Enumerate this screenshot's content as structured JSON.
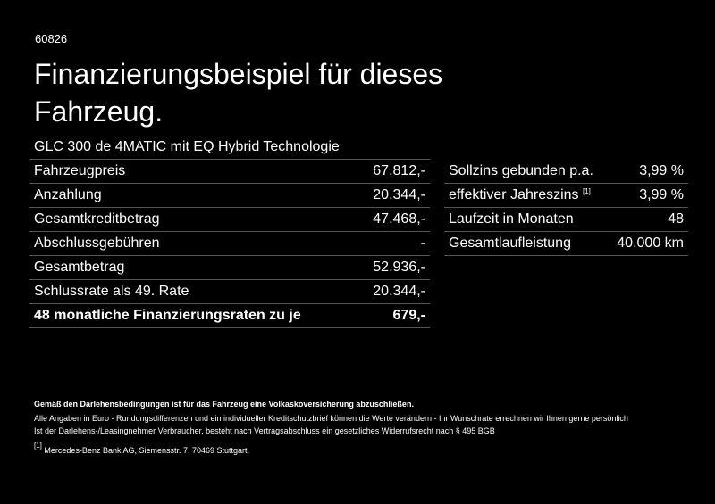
{
  "code": "60826",
  "title": "Finanzierungsbeispiel für dieses Fahrzeug.",
  "model": "GLC 300 de 4MATIC mit EQ Hybrid Technologie",
  "left_rows": [
    {
      "label": "Fahrzeugpreis",
      "value": "67.812,-"
    },
    {
      "label": "Anzahlung",
      "value": "20.344,-"
    },
    {
      "label": "Gesamtkreditbetrag",
      "value": "47.468,-"
    },
    {
      "label": "Abschlussgebühren",
      "value": "-"
    },
    {
      "label": "Gesamtbetrag",
      "value": "52.936,-"
    },
    {
      "label": "Schlussrate als 49. Rate",
      "value": "20.344,-"
    },
    {
      "label": "48 monatliche Finanzierungsraten zu je",
      "value": "679,-"
    }
  ],
  "right_rows": [
    {
      "label": "Sollzins gebunden p.a.",
      "sup": "",
      "value": "3,99 %"
    },
    {
      "label": "effektiver Jahreszins",
      "sup": "[1]",
      "value": "3,99 %"
    },
    {
      "label": "Laufzeit in Monaten",
      "sup": "",
      "value": "48"
    },
    {
      "label": "Gesamtlaufleistung",
      "sup": "",
      "value": "40.000 km"
    }
  ],
  "notes": {
    "bold": "Gemäß den Darlehensbedingungen ist für das Fahrzeug eine Volkaskoversicherung abzuschließen.",
    "line1": "Alle Angaben in Euro - Rundungsdifferenzen und ein individueller Kreditschutzbrief können die Werte verändern - Ihr Wunschrate errechnen wir Ihnen gerne persönlich",
    "line2": "Ist der Darlehens-/Leasingnehmer Verbraucher, besteht nach Vertragsabschluss ein gesetzliches Widerrufsrecht nach § 495 BGB",
    "ref_mark": "[1]",
    "ref_text": "Mercedes-Benz Bank AG, Siemensstr. 7, 70469 Stuttgart."
  }
}
